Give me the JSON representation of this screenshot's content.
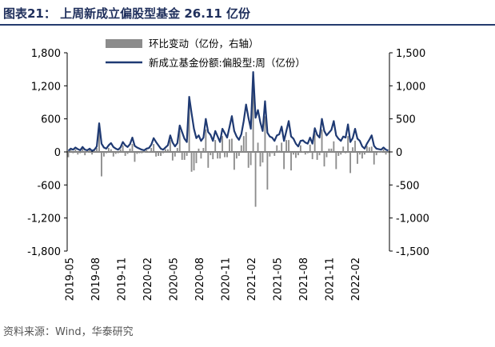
{
  "header": {
    "title": "图表21： 上周新成立偏股型基金 26.11 亿份"
  },
  "footer": {
    "source": "资料来源：Wind，华泰研究"
  },
  "colors": {
    "bar": "#8c8c8c",
    "line": "#1f3a73",
    "title": "#1f2f5c"
  },
  "chart_data": {
    "type": "bar+line",
    "legend": {
      "placement": "top",
      "bar_label": "环比变动（亿份，右轴）",
      "line_label": "新成立基金份额:偏股型:周（亿份）"
    },
    "left_axis": {
      "ylim": [
        -1800,
        1800
      ],
      "ticks": [
        1800,
        1200,
        600,
        0,
        -600,
        -1200,
        -1800
      ],
      "tick_labels": [
        "1,800",
        "1,200",
        "600",
        "0",
        "-600",
        "-1,200",
        "-1,800"
      ]
    },
    "right_axis": {
      "ylim": [
        -1500,
        1500
      ],
      "ticks": [
        1500,
        1000,
        500,
        0,
        -500,
        -1000,
        -1500
      ],
      "tick_labels": [
        "1,500",
        "1,000",
        "500",
        "0",
        "-500",
        "-1,000",
        "-1,500"
      ]
    },
    "x_axis": {
      "tick_labels": [
        "2019-05",
        "2019-08",
        "2019-11",
        "2020-02",
        "2020-05",
        "2020-08",
        "2020-11",
        "2021-02",
        "2021-05",
        "2021-08",
        "2021-11",
        "2022-02"
      ]
    },
    "series": [
      {
        "name": "新成立基金份额:偏股型:周（亿份）",
        "axis": "left",
        "kind": "line",
        "values": [
          20,
          60,
          40,
          80,
          50,
          30,
          90,
          40,
          30,
          60,
          20,
          40,
          100,
          520,
          150,
          80,
          60,
          120,
          160,
          90,
          60,
          40,
          80,
          180,
          120,
          90,
          140,
          260,
          110,
          80,
          60,
          40,
          30,
          60,
          70,
          130,
          250,
          180,
          120,
          60,
          40,
          80,
          120,
          300,
          170,
          100,
          160,
          480,
          360,
          240,
          180,
          1000,
          700,
          420,
          250,
          300,
          200,
          260,
          600,
          360,
          310,
          200,
          380,
          280,
          180,
          420,
          340,
          260,
          450,
          650,
          380,
          280,
          220,
          320,
          560,
          860,
          620,
          420,
          1450,
          620,
          760,
          540,
          380,
          920,
          350,
          280,
          260,
          200,
          300,
          320,
          460,
          200,
          380,
          560,
          280,
          240,
          150,
          100,
          200,
          210,
          170,
          150,
          260,
          150,
          430,
          310,
          260,
          600,
          380,
          300,
          350,
          400,
          560,
          300,
          240,
          200,
          280,
          260,
          500,
          180,
          250,
          420,
          240,
          200,
          100,
          60,
          150,
          220,
          300,
          110,
          60,
          50,
          40,
          80,
          40,
          26
        ]
      },
      {
        "name": "环比变动（亿份，右轴）",
        "axis": "right",
        "kind": "bar",
        "values": [
          -80,
          30,
          -20,
          40,
          -40,
          -20,
          60,
          -50,
          -10,
          30,
          -40,
          20,
          60,
          420,
          -370,
          -70,
          -20,
          60,
          40,
          -70,
          -30,
          -20,
          40,
          100,
          -60,
          -30,
          50,
          120,
          -150,
          -30,
          -20,
          -20,
          -10,
          30,
          10,
          60,
          120,
          -70,
          -60,
          -60,
          -20,
          40,
          40,
          180,
          -130,
          -70,
          60,
          320,
          -120,
          -120,
          -60,
          820,
          -300,
          -280,
          -170,
          50,
          -100,
          60,
          340,
          -240,
          -50,
          -110,
          180,
          -100,
          -100,
          240,
          -80,
          -80,
          190,
          200,
          -270,
          -100,
          -60,
          100,
          240,
          300,
          -240,
          -200,
          1030,
          -830,
          140,
          -220,
          -160,
          540,
          -570,
          -70,
          -20,
          -60,
          100,
          20,
          140,
          -260,
          180,
          180,
          -280,
          -40,
          -90,
          -50,
          100,
          10,
          -40,
          -20,
          110,
          -110,
          280,
          -120,
          -50,
          340,
          -220,
          -80,
          50,
          50,
          160,
          -260,
          -60,
          -40,
          80,
          -20,
          240,
          -320,
          70,
          170,
          -180,
          -40,
          -100,
          -40,
          90,
          70,
          80,
          -190,
          -50,
          -10,
          -10,
          40,
          -40,
          -14
        ]
      }
    ]
  }
}
